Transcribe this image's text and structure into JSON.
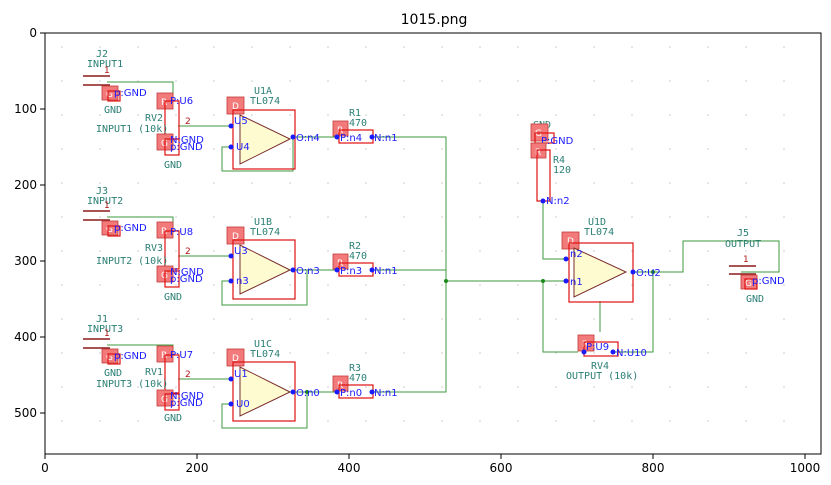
{
  "title": "1015.png",
  "axes": {
    "x_ticks": [
      "0",
      "200",
      "400",
      "600",
      "800",
      "1000"
    ],
    "y_ticks": [
      "0",
      "100",
      "200",
      "300",
      "400",
      "500"
    ]
  },
  "colors": {
    "wire": "#3e9a3e",
    "box": "#e01010",
    "ref_text": "#2a7f74",
    "net_text": "#1a1aff",
    "opamp_fill": "#fdfbcf"
  },
  "components": {
    "J2": {
      "ref": "J2",
      "value": "INPUT1",
      "gnd": "GND",
      "net": "p:GND",
      "pad": "G"
    },
    "RV2": {
      "ref": "RV2",
      "value": "INPUT1 (10k)",
      "netA": "P:U6",
      "netB": "N:GND",
      "netC": "p:GND",
      "gnd": "GND",
      "padR": "R",
      "padG": "G"
    },
    "U1A": {
      "ref": "U1A",
      "value": "TL074",
      "n1": "U5",
      "n2": "U4",
      "out": "O:n4",
      "pad": "D"
    },
    "R1": {
      "ref": "R1",
      "value": "470",
      "p": "P:n4",
      "n": "N:n1",
      "pad": "R"
    },
    "J3": {
      "ref": "J3",
      "value": "INPUT2",
      "net": "p:GND",
      "pad": "G"
    },
    "RV3": {
      "ref": "RV3",
      "value": "INPUT2 (10k)",
      "netA": "P:U8",
      "netB": "N:GND",
      "netC": "p:GND",
      "gnd": "GND",
      "padR": "R",
      "padG": "G"
    },
    "U1B": {
      "ref": "U1B",
      "value": "TL074",
      "n1": "U3",
      "n2": "n3",
      "out": "O:n3",
      "pad": "D"
    },
    "R2": {
      "ref": "R2",
      "value": "470",
      "p": "P:n3",
      "n": "N:n1",
      "pad": "R"
    },
    "J1": {
      "ref": "J1",
      "value": "INPUT3",
      "gnd": "GND",
      "net": "p:GND",
      "pad": "G"
    },
    "RV1": {
      "ref": "RV1",
      "value": "INPUT3 (10k)",
      "netA": "P:U7",
      "netB": "N:GND",
      "netC": "p:GND",
      "gnd": "GND",
      "padR": "R",
      "padG": "G"
    },
    "U1C": {
      "ref": "U1C",
      "value": "TL074",
      "n1": "U1",
      "n2": "U0",
      "out": "O:n0",
      "pad": "D"
    },
    "R3": {
      "ref": "R3",
      "value": "470",
      "p": "P:n0",
      "n": "N:n1",
      "pad": "R"
    },
    "R4": {
      "ref": "R4",
      "value": "120",
      "gnd": "GND",
      "p": "P:GND",
      "n": "N:n2",
      "padG": "G",
      "padR": "R"
    },
    "U1D": {
      "ref": "U1D",
      "value": "TL074",
      "n1": "n2",
      "n2": "n1",
      "out": "O:U2",
      "pad": "D"
    },
    "RV4": {
      "ref": "RV4",
      "value": "OUTPUT (10k)",
      "p": "P:U9",
      "n": "N:U10",
      "pad": "R"
    },
    "J5": {
      "ref": "J5",
      "value": "OUTPUT",
      "gnd": "GND",
      "net": "p:GND",
      "pad": "G"
    }
  }
}
